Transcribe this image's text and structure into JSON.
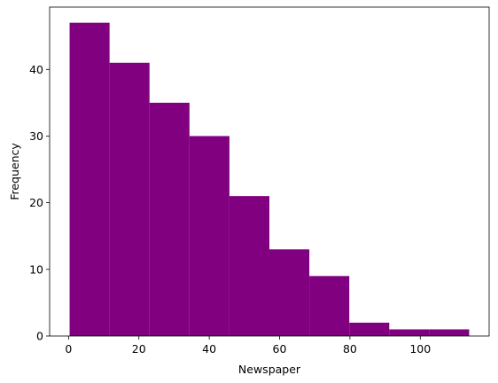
{
  "chart_data": {
    "type": "bar",
    "title": "",
    "xlabel": "Newspaper",
    "ylabel": "Frequency",
    "bin_edges": [
      0.3,
      11.66,
      23.02,
      34.38,
      45.74,
      57.1,
      68.46,
      79.82,
      91.18,
      102.54,
      113.9
    ],
    "values": [
      47,
      41,
      35,
      30,
      21,
      13,
      9,
      2,
      1,
      1
    ],
    "bar_color": "#800080",
    "xlim": [
      -5.38,
      119.58
    ],
    "ylim": [
      0,
      49.35
    ],
    "xticks": [
      0,
      20,
      40,
      60,
      80,
      100
    ],
    "yticks": [
      0,
      10,
      20,
      30,
      40
    ],
    "grid": false
  }
}
